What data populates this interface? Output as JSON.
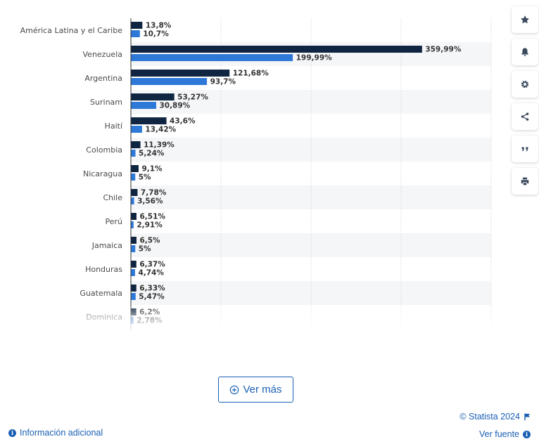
{
  "chart_data": {
    "type": "bar",
    "orientation": "horizontal",
    "categories": [
      "América Latina y el Caribe",
      "Venezuela",
      "Argentina",
      "Surinam",
      "Haití",
      "Colombia",
      "Nicaragua",
      "Chile",
      "Perú",
      "Jamaica",
      "Honduras",
      "Guatemala",
      "Dominica"
    ],
    "series": [
      {
        "color": "#0f2541",
        "values": [
          13.8,
          359.99,
          121.68,
          53.27,
          43.6,
          11.39,
          9.1,
          7.78,
          6.51,
          6.5,
          6.37,
          6.33,
          6.2
        ],
        "labels": [
          "13,8%",
          "359,99%",
          "121,68%",
          "53,27%",
          "43,6%",
          "11,39%",
          "9,1%",
          "7,78%",
          "6,51%",
          "6,5%",
          "6,37%",
          "6,33%",
          "6,2%"
        ]
      },
      {
        "color": "#2e78d8",
        "values": [
          10.7,
          199.99,
          93.7,
          30.89,
          13.42,
          5.24,
          5,
          3.56,
          2.91,
          5,
          4.74,
          5.47,
          2.78
        ],
        "labels": [
          "10,7%",
          "199,99%",
          "93,7%",
          "30,89%",
          "13,42%",
          "5,24%",
          "5%",
          "3,56%",
          "2,91%",
          "5%",
          "4,74%",
          "5,47%",
          "2,78%"
        ]
      }
    ],
    "xlim": [
      0,
      400
    ],
    "grid": true,
    "faded_last_row": true
  },
  "toolbar": {
    "buttons": [
      {
        "name": "favorite-button",
        "icon": "star-icon"
      },
      {
        "name": "notification-button",
        "icon": "bell-icon"
      },
      {
        "name": "settings-button",
        "icon": "gear-icon"
      },
      {
        "name": "share-button",
        "icon": "share-icon"
      },
      {
        "name": "cite-button",
        "icon": "quote-icon"
      },
      {
        "name": "print-button",
        "icon": "print-icon"
      }
    ]
  },
  "more_button": {
    "label": "Ver más",
    "icon": "plus-circle-icon"
  },
  "footer": {
    "info_link": "Información adicional",
    "copyright": "© Statista 2024",
    "source_link": "Ver fuente"
  },
  "colors": {
    "accent": "#1a5fb4",
    "series1": "#0f2541",
    "series2": "#2e78d8"
  }
}
